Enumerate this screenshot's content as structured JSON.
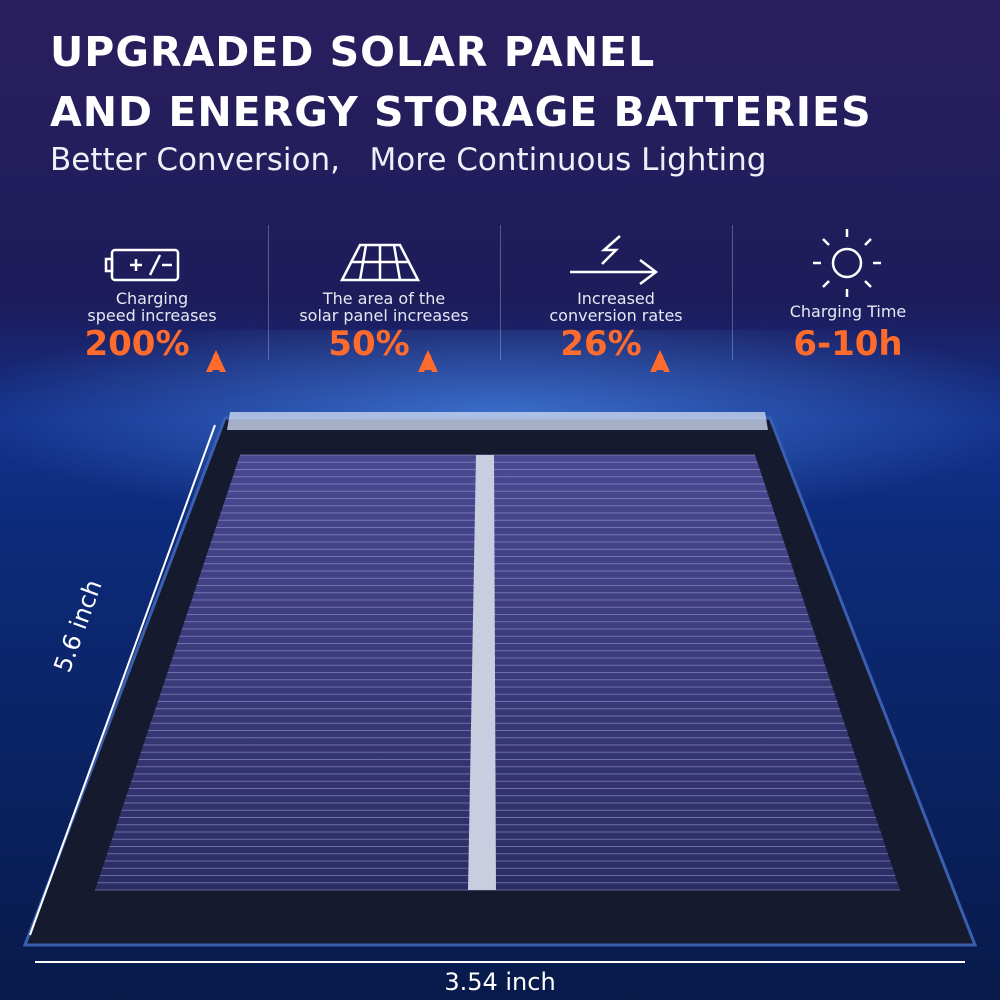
{
  "header": {
    "title_lines": [
      "UPGRADED SOLAR PANEL",
      "AND ENERGY STORAGE BATTERIES"
    ],
    "subtitle": "Better Conversion,   More Continuous Lighting"
  },
  "features": [
    {
      "label_lines": [
        "Charging",
        "speed increases"
      ],
      "value": "200%"
    },
    {
      "label_lines": [
        "The area of the",
        "solar panel increases"
      ],
      "value": "50%"
    },
    {
      "label_lines": [
        "Increased",
        "conversion rates"
      ],
      "value": "26%"
    },
    {
      "label_lines": [
        "Charging Time"
      ],
      "value": "6-10h"
    }
  ],
  "dimensions": {
    "height": "5.6 inch",
    "width": "3.54 inch"
  }
}
